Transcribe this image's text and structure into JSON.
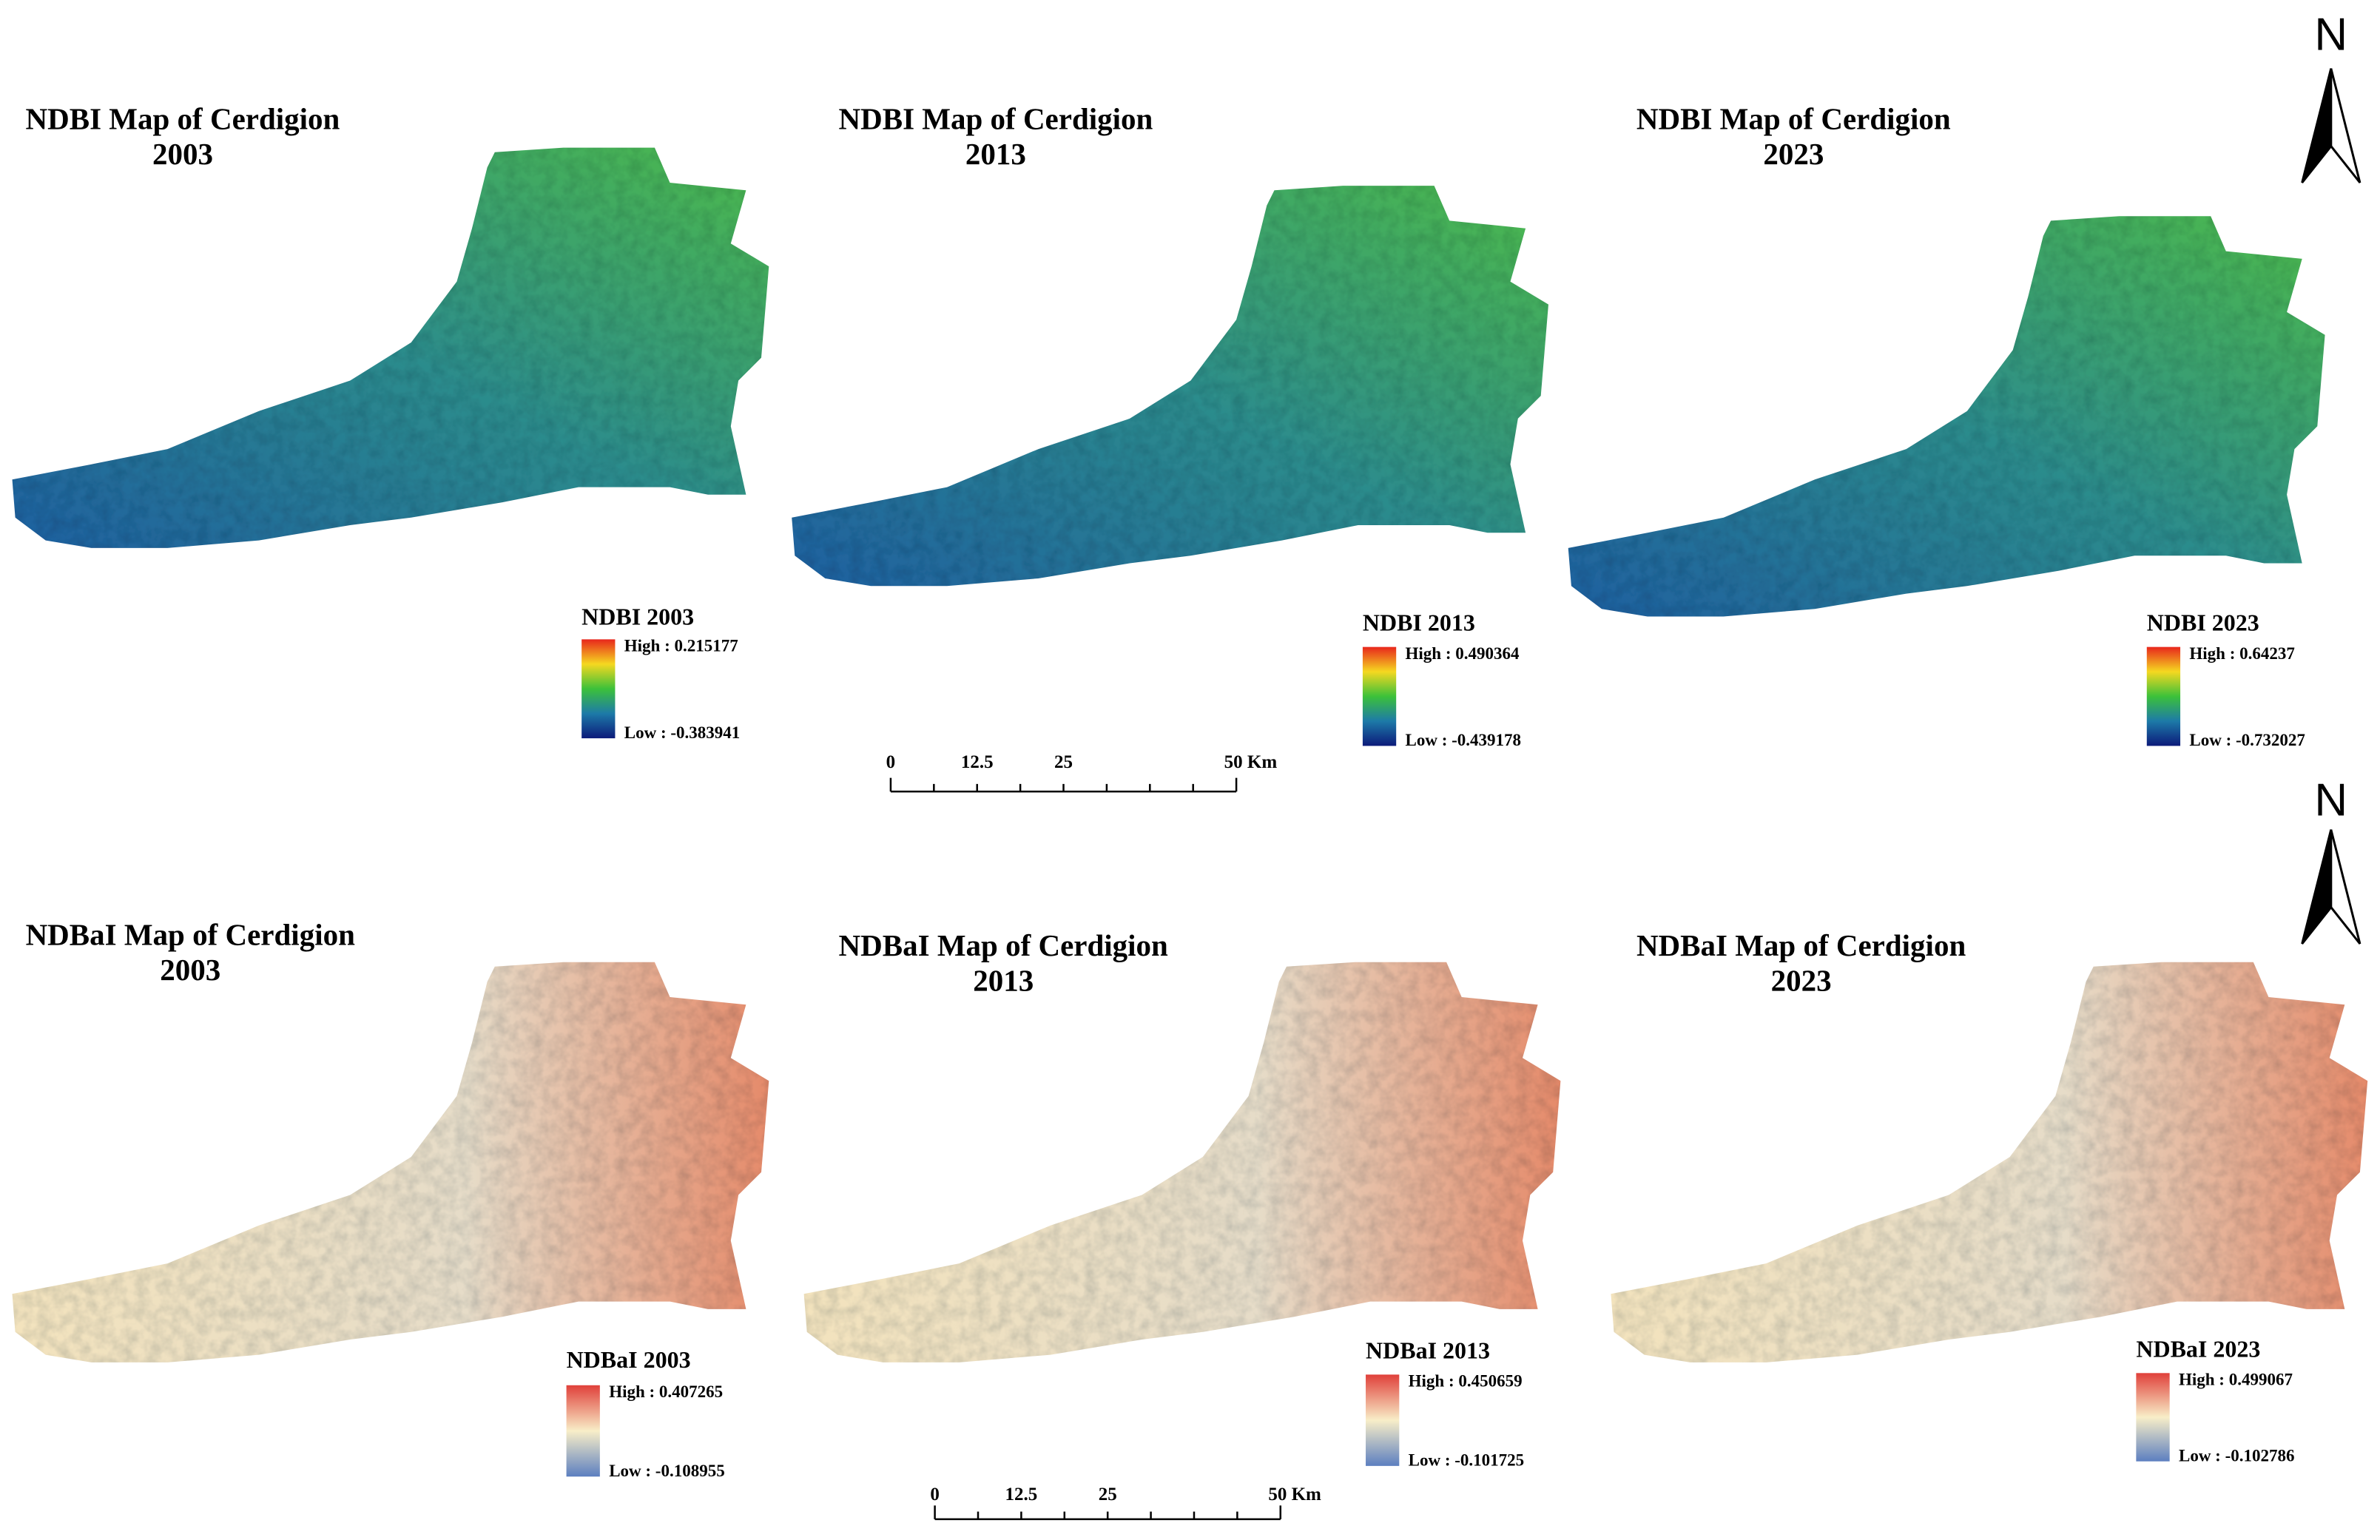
{
  "north_arrows": [
    "N",
    "N"
  ],
  "panels": [
    {
      "title": "NDBI Map of Cerdigion",
      "year": "2003",
      "legend_title": "NDBI 2003",
      "high": "High : 0.215177",
      "low": "Low : -0.383941"
    },
    {
      "title": "NDBI Map of Cerdigion",
      "year": "2013",
      "legend_title": "NDBI 2013",
      "high": "High : 0.490364",
      "low": "Low : -0.439178"
    },
    {
      "title": "NDBI Map of Cerdigion",
      "year": "2023",
      "legend_title": "NDBI 2023",
      "high": "High : 0.64237",
      "low": "Low : -0.732027"
    },
    {
      "title": "NDBaI Map of Cerdigion",
      "year": "2003",
      "legend_title": "NDBaI 2003",
      "high": "High : 0.407265",
      "low": "Low : -0.108955"
    },
    {
      "title": "NDBaI Map of Cerdigion",
      "year": "2013",
      "legend_title": "NDBaI 2013",
      "high": "High : 0.450659",
      "low": "Low : -0.101725"
    },
    {
      "title": "NDBaI Map of Cerdigion",
      "year": "2023",
      "legend_title": "NDBaI 2023",
      "high": "High : 0.499067",
      "low": "Low : -0.102786"
    }
  ],
  "scale_bars": [
    {
      "labels": [
        "0",
        "12.5",
        "25",
        "50 Km"
      ]
    },
    {
      "labels": [
        "0",
        "12.5",
        "25",
        "50 Km"
      ]
    }
  ]
}
